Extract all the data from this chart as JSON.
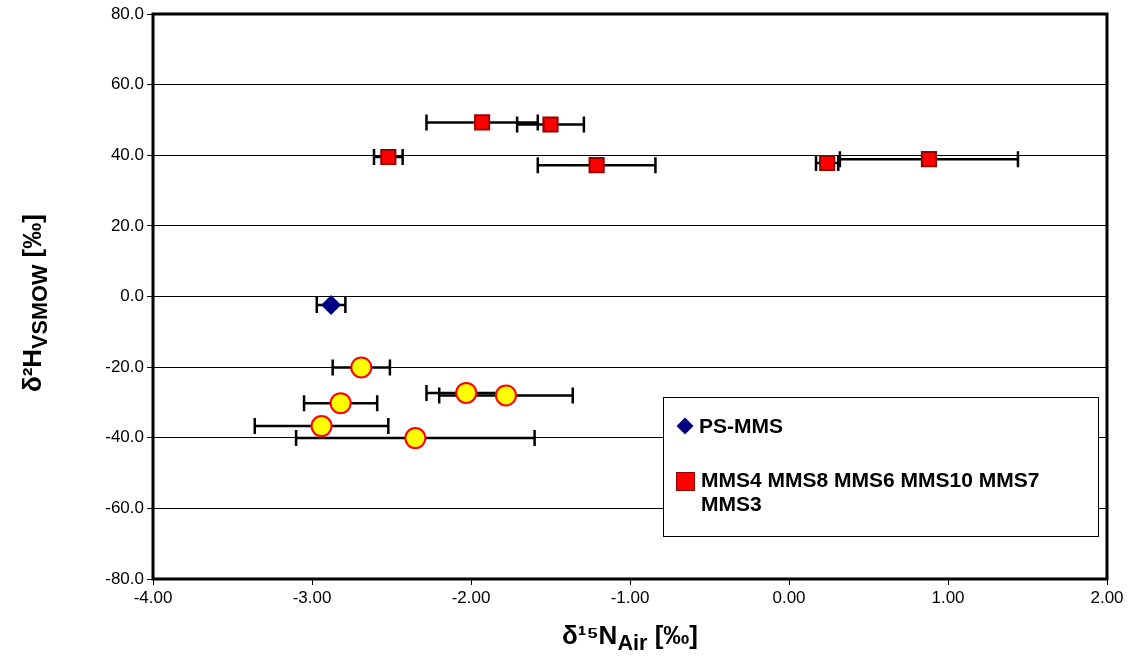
{
  "chart_data": {
    "type": "scatter",
    "xlabel": "δ¹⁵N$_{Air}$ [‰]",
    "ylabel": "δ²H$_{VSMOW}$ [‰]",
    "xlim": [
      -4,
      2
    ],
    "ylim": [
      -80,
      80
    ],
    "xticks": [
      {
        "value": -4,
        "label": "-4.00"
      },
      {
        "value": -3,
        "label": "-3.00"
      },
      {
        "value": -2,
        "label": "-2.00"
      },
      {
        "value": -1,
        "label": "-1.00"
      },
      {
        "value": 0,
        "label": "0.00"
      },
      {
        "value": 1,
        "label": "1.00"
      },
      {
        "value": 2,
        "label": "2.00"
      }
    ],
    "yticks": [
      {
        "value": -80,
        "label": "-80.0"
      },
      {
        "value": -60,
        "label": "-60.0"
      },
      {
        "value": -40,
        "label": "-40.0"
      },
      {
        "value": -20,
        "label": "-20.0"
      },
      {
        "value": 0,
        "label": "0.0"
      },
      {
        "value": 20,
        "label": "20.0"
      },
      {
        "value": 40,
        "label": "40.0"
      },
      {
        "value": 60,
        "label": "60.0"
      },
      {
        "value": 80,
        "label": "80.0"
      }
    ],
    "grid": "y",
    "legend": "bottom right",
    "series": [
      {
        "name": "PS-MMS",
        "color": "#000080",
        "marker": "diamond",
        "x": [
          -2.88
        ],
        "values": [
          -2.4
        ],
        "xerrors": [
          0.09
        ]
      },
      {
        "name": "MMS4 MMS8 MMS6 MMS10 MMS7 MMS3",
        "color": "#ff0000",
        "marker": "square",
        "x": [
          -1.93,
          -1.5,
          -2.52,
          -1.21,
          0.24,
          0.88
        ],
        "values": [
          49.3,
          48.7,
          39.5,
          37.2,
          37.8,
          38.9
        ],
        "xerrors": [
          0.35,
          0.21,
          0.09,
          0.37,
          0.07,
          0.56
        ]
      },
      {
        "color": "#ffff00",
        "marker": "circle",
        "x": [
          -2.69,
          -2.82,
          -2.03,
          -1.78,
          -2.94,
          -2.35
        ],
        "values": [
          -20.1,
          -30.2,
          -27.3,
          -28.0,
          -36.7,
          -40.1
        ],
        "xerrors": [
          0.18,
          0.23,
          0.25,
          0.42,
          0.42,
          0.75
        ]
      }
    ]
  }
}
